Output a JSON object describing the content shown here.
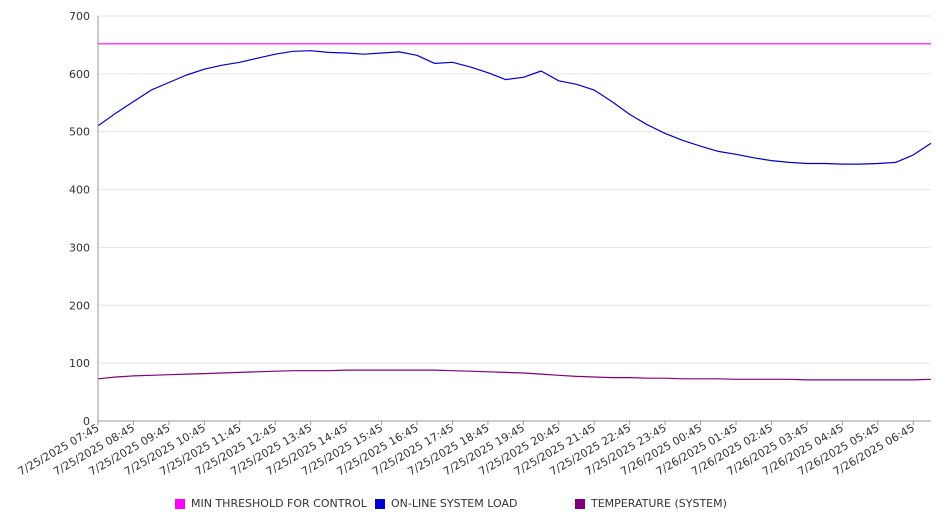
{
  "chart_data": {
    "type": "line",
    "title": "",
    "xlabel": "",
    "ylabel": "",
    "ylim": [
      0,
      700
    ],
    "yticks": [
      0,
      100,
      200,
      300,
      400,
      500,
      600,
      700
    ],
    "grid": "horizontal",
    "legend_position": "bottom",
    "x_tick_labels": [
      "7/25/2025 07:45",
      "7/25/2025 08:45",
      "7/25/2025 09:45",
      "7/25/2025 10:45",
      "7/25/2025 11:45",
      "7/25/2025 12:45",
      "7/25/2025 13:45",
      "7/25/2025 14:45",
      "7/25/2025 15:45",
      "7/25/2025 16:45",
      "7/25/2025 17:45",
      "7/25/2025 18:45",
      "7/25/2025 19:45",
      "7/25/2025 20:45",
      "7/25/2025 21:45",
      "7/25/2025 22:45",
      "7/25/2025 23:45",
      "7/26/2025 00:45",
      "7/26/2025 01:45",
      "7/26/2025 02:45",
      "7/26/2025 03:45",
      "7/26/2025 04:45",
      "7/26/2025 05:45",
      "7/26/2025 06:45"
    ],
    "x": [
      "7/25/2025 07:45",
      "7/25/2025 08:15",
      "7/25/2025 08:45",
      "7/25/2025 09:15",
      "7/25/2025 09:45",
      "7/25/2025 10:15",
      "7/25/2025 10:45",
      "7/25/2025 11:15",
      "7/25/2025 11:45",
      "7/25/2025 12:15",
      "7/25/2025 12:45",
      "7/25/2025 13:15",
      "7/25/2025 13:45",
      "7/25/2025 14:15",
      "7/25/2025 14:45",
      "7/25/2025 15:15",
      "7/25/2025 15:45",
      "7/25/2025 16:15",
      "7/25/2025 16:45",
      "7/25/2025 17:15",
      "7/25/2025 17:45",
      "7/25/2025 18:15",
      "7/25/2025 18:45",
      "7/25/2025 19:15",
      "7/25/2025 19:45",
      "7/25/2025 20:15",
      "7/25/2025 20:45",
      "7/25/2025 21:15",
      "7/25/2025 21:45",
      "7/25/2025 22:15",
      "7/25/2025 22:45",
      "7/25/2025 23:15",
      "7/25/2025 23:45",
      "7/26/2025 00:15",
      "7/26/2025 00:45",
      "7/26/2025 01:15",
      "7/26/2025 01:45",
      "7/26/2025 02:15",
      "7/26/2025 02:45",
      "7/26/2025 03:15",
      "7/26/2025 03:45",
      "7/26/2025 04:15",
      "7/26/2025 04:45",
      "7/26/2025 05:15",
      "7/26/2025 05:45",
      "7/26/2025 06:15",
      "7/26/2025 06:45",
      "7/26/2025 07:15"
    ],
    "series": [
      {
        "name": "MIN THRESHOLD FOR CONTROL",
        "color": "#ff00ff",
        "values": [
          652,
          652,
          652,
          652,
          652,
          652,
          652,
          652,
          652,
          652,
          652,
          652,
          652,
          652,
          652,
          652,
          652,
          652,
          652,
          652,
          652,
          652,
          652,
          652,
          652,
          652,
          652,
          652,
          652,
          652,
          652,
          652,
          652,
          652,
          652,
          652,
          652,
          652,
          652,
          652,
          652,
          652,
          652,
          652,
          652,
          652,
          652,
          652
        ]
      },
      {
        "name": "ON-LINE SYSTEM LOAD",
        "color": "#0000cc",
        "values": [
          510,
          532,
          552,
          572,
          585,
          598,
          608,
          615,
          620,
          627,
          634,
          639,
          640,
          637,
          636,
          634,
          636,
          638,
          632,
          618,
          620,
          612,
          602,
          590,
          594,
          605,
          588,
          582,
          572,
          552,
          530,
          512,
          497,
          485,
          475,
          466,
          461,
          455,
          450,
          447,
          445,
          445,
          444,
          444,
          445,
          447,
          460,
          480
        ]
      },
      {
        "name": "TEMPERATURE (SYSTEM)",
        "color": "#800080",
        "values": [
          73,
          76,
          78,
          79,
          80,
          81,
          82,
          83,
          84,
          85,
          86,
          87,
          87,
          87,
          88,
          88,
          88,
          88,
          88,
          88,
          87,
          86,
          85,
          84,
          83,
          81,
          79,
          77,
          76,
          75,
          75,
          74,
          74,
          73,
          73,
          73,
          72,
          72,
          72,
          72,
          71,
          71,
          71,
          71,
          71,
          71,
          71,
          72
        ]
      }
    ]
  }
}
